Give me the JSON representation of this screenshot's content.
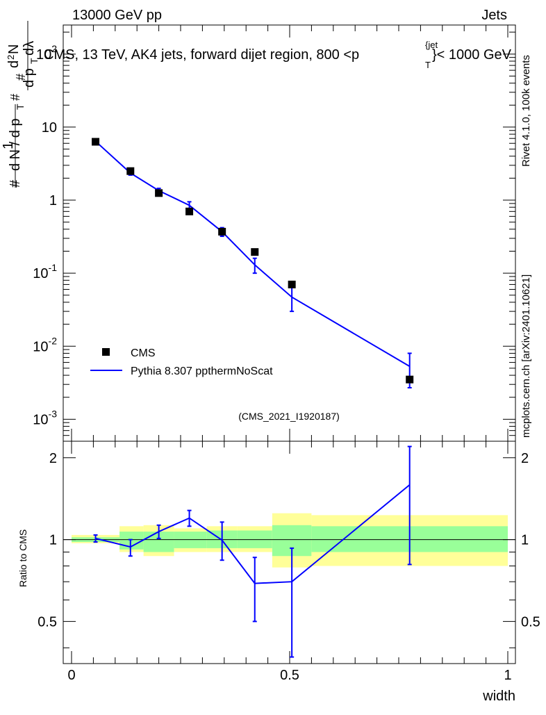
{
  "header": {
    "left": "13000 GeV pp",
    "right": "Jets"
  },
  "plot_title": {
    "prefix": "CMS, 13 TeV, AK4 jets, forward dijet region, 800 <p",
    "sup": "{jet",
    "sub": "T",
    "suffix": "}< 1000 GeV"
  },
  "side_labels": {
    "rivet": "Rivet 4.1.0,  100k events",
    "mcplots": "mcplots.cern.ch [arXiv:2401.10621]"
  },
  "analysis_tag": "(CMS_2021_I1920187)",
  "legend": {
    "data_label": "CMS",
    "mc_label": "Pythia 8.307 ppthermNoScat"
  },
  "colors": {
    "mc": "#0000ff",
    "band_inner": "#99ff99",
    "band_outer": "#ffff99",
    "data": "#000000"
  },
  "chart_data": [
    {
      "type": "scatter",
      "name": "main",
      "title": "CMS, 13 TeV, AK4 jets, forward dijet region, 800 <p_T^{jet}< 1000 GeV",
      "ylabel": "1/(dN/dp_T) d^2N/(dp_T dλ)",
      "yscale": "log",
      "xlim": [
        0,
        1
      ],
      "ylim": [
        0.0005,
        250
      ],
      "ytick_labels": [
        "10^-3",
        "10^-2",
        "10^-1",
        "1",
        "10",
        "10^2"
      ],
      "series": [
        {
          "name": "CMS",
          "style": "markers",
          "x": [
            0.055,
            0.135,
            0.2,
            0.27,
            0.345,
            0.42,
            0.505,
            0.775
          ],
          "y": [
            6.3,
            2.5,
            1.25,
            0.7,
            0.37,
            0.195,
            0.07,
            0.0035
          ]
        },
        {
          "name": "Pythia 8.307 ppthermNoScat",
          "style": "line",
          "x": [
            0.055,
            0.135,
            0.2,
            0.27,
            0.345,
            0.42,
            0.505,
            0.775
          ],
          "y": [
            6.4,
            2.35,
            1.35,
            0.85,
            0.37,
            0.13,
            0.047,
            0.0053
          ],
          "err_low": [
            6.0,
            2.2,
            1.2,
            0.75,
            0.32,
            0.1,
            0.03,
            0.0027
          ],
          "err_high": [
            6.8,
            2.5,
            1.45,
            0.95,
            0.42,
            0.16,
            0.064,
            0.008
          ]
        }
      ]
    },
    {
      "type": "line",
      "name": "ratio",
      "ylabel": "Ratio to CMS",
      "xlabel": "width",
      "xlim": [
        0,
        1
      ],
      "ylim": [
        0.35,
        2.3
      ],
      "yticks": [
        0.5,
        1,
        2
      ],
      "xticks": [
        0,
        0.5,
        1
      ],
      "xtick_labels": [
        "0",
        "0.5",
        "1"
      ],
      "ytick_labels": [
        "0.5",
        "1",
        "2"
      ],
      "bands": [
        {
          "x0": 0.0,
          "x1": 0.11,
          "inner": [
            0.98,
            1.02
          ],
          "outer": [
            0.97,
            1.04
          ]
        },
        {
          "x0": 0.11,
          "x1": 0.165,
          "inner": [
            0.92,
            1.07
          ],
          "outer": [
            0.9,
            1.12
          ]
        },
        {
          "x0": 0.165,
          "x1": 0.235,
          "inner": [
            0.9,
            1.07
          ],
          "outer": [
            0.87,
            1.13
          ]
        },
        {
          "x0": 0.235,
          "x1": 0.31,
          "inner": [
            0.93,
            1.07
          ],
          "outer": [
            0.9,
            1.1
          ]
        },
        {
          "x0": 0.31,
          "x1": 0.38,
          "inner": [
            0.93,
            1.08
          ],
          "outer": [
            0.9,
            1.12
          ]
        },
        {
          "x0": 0.38,
          "x1": 0.46,
          "inner": [
            0.93,
            1.08
          ],
          "outer": [
            0.9,
            1.12
          ]
        },
        {
          "x0": 0.46,
          "x1": 0.55,
          "inner": [
            0.87,
            1.13
          ],
          "outer": [
            0.79,
            1.25
          ]
        },
        {
          "x0": 0.55,
          "x1": 1.0,
          "inner": [
            0.9,
            1.12
          ],
          "outer": [
            0.8,
            1.23
          ]
        }
      ],
      "series": [
        {
          "name": "Pythia 8.307 ppthermNoScat",
          "x": [
            0.055,
            0.135,
            0.2,
            0.27,
            0.345,
            0.42,
            0.505,
            0.775
          ],
          "y": [
            1.01,
            0.94,
            1.07,
            1.2,
            0.995,
            0.69,
            0.7,
            1.59
          ],
          "err_low": [
            0.98,
            0.87,
            1.01,
            1.12,
            0.84,
            0.5,
            0.37,
            0.81
          ],
          "err_high": [
            1.04,
            1.0,
            1.13,
            1.28,
            1.16,
            0.86,
            0.93,
            2.2
          ]
        }
      ]
    }
  ]
}
